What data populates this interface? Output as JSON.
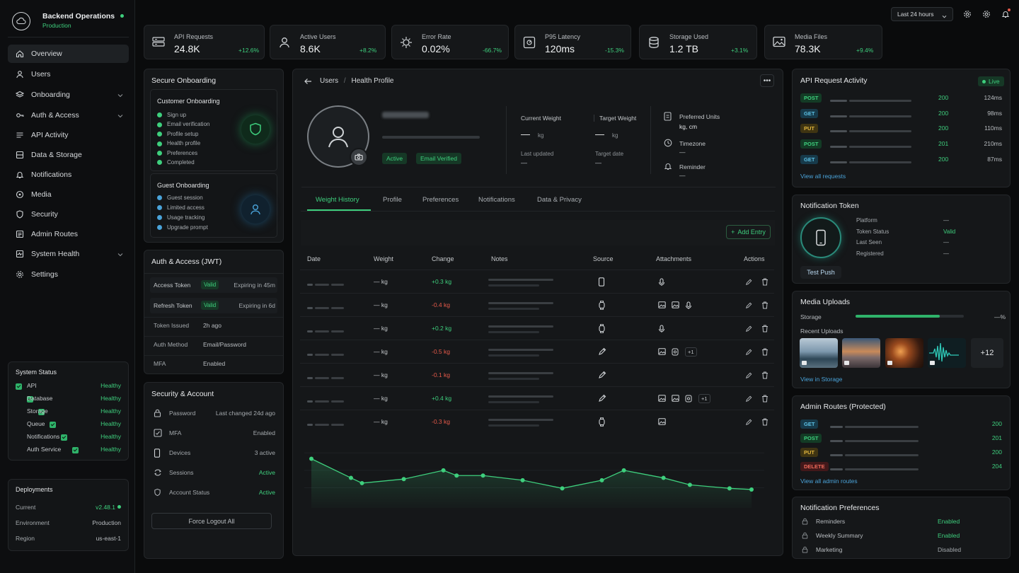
{
  "app": {
    "name": "Backend Operations",
    "env": "Production"
  },
  "header": {
    "range": "Last 24 hours"
  },
  "sidebar": {
    "items": [
      {
        "label": "Overview",
        "icon": "home-icon"
      },
      {
        "label": "Users",
        "icon": "user-icon"
      },
      {
        "label": "Onboarding",
        "icon": "layers-icon"
      },
      {
        "label": "Auth & Access",
        "icon": "key-icon"
      },
      {
        "label": "API Activity",
        "icon": "api-icon"
      },
      {
        "label": "Data & Storage",
        "icon": "database-icon"
      },
      {
        "label": "Notifications",
        "icon": "bell-icon"
      },
      {
        "label": "Media",
        "icon": "media-icon"
      },
      {
        "label": "Security",
        "icon": "shield-icon"
      },
      {
        "label": "Admin Routes",
        "icon": "list-icon"
      },
      {
        "label": "System Health",
        "icon": "health-icon"
      },
      {
        "label": "Settings",
        "icon": "gear-icon"
      }
    ],
    "system_status": {
      "title": "System Status",
      "items": [
        {
          "name": "API",
          "status": "Healthy"
        },
        {
          "name": "Database",
          "status": "Healthy"
        },
        {
          "name": "Storage",
          "status": "Healthy"
        },
        {
          "name": "Queue",
          "status": "Healthy"
        },
        {
          "name": "Notifications",
          "status": "Healthy"
        },
        {
          "name": "Auth Service",
          "status": "Healthy"
        }
      ]
    },
    "deployments": {
      "title": "Deployments",
      "rows": [
        {
          "label": "Current",
          "value": "v2.48.1"
        },
        {
          "label": "Environment",
          "value": "Production"
        },
        {
          "label": "Region",
          "value": "us-east-1"
        }
      ]
    }
  },
  "stats": [
    {
      "label": "API Requests",
      "value": "24.8K",
      "change": "+12.6%",
      "icon": "server-icon"
    },
    {
      "label": "Active Users",
      "value": "8.6K",
      "change": "+8.2%",
      "icon": "user-icon"
    },
    {
      "label": "Error Rate",
      "value": "0.02%",
      "change": "-66.7%",
      "icon": "bug-icon"
    },
    {
      "label": "P95 Latency",
      "value": "120ms",
      "change": "-15.3%",
      "icon": "gauge-icon"
    },
    {
      "label": "Storage Used",
      "value": "1.2 TB",
      "change": "+3.1%",
      "icon": "database-icon"
    },
    {
      "label": "Media Files",
      "value": "78.3K",
      "change": "+9.4%",
      "icon": "image-icon"
    }
  ],
  "onboarding": {
    "title": "Secure Onboarding",
    "customer": {
      "title": "Customer Onboarding",
      "steps": [
        "Sign up",
        "Email verification",
        "Profile setup",
        "Health profile",
        "Preferences",
        "Completed"
      ]
    },
    "guest": {
      "title": "Guest Onboarding",
      "steps": [
        "Guest session",
        "Limited access",
        "Usage tracking",
        "Upgrade prompt"
      ]
    }
  },
  "auth": {
    "title": "Auth & Access (JWT)",
    "tokens": [
      {
        "name": "Access Token",
        "status": "Valid",
        "expiry": "Expiring in 45m"
      },
      {
        "name": "Refresh Token",
        "status": "Valid",
        "expiry": "Expiring in 6d"
      }
    ],
    "rows": [
      {
        "label": "Token Issued",
        "value": "2h ago"
      },
      {
        "label": "Auth Method",
        "value": "Email/Password"
      },
      {
        "label": "MFA",
        "value": "Enabled"
      }
    ]
  },
  "security": {
    "title": "Security & Account",
    "rows": [
      {
        "label": "Password",
        "value": "Last changed 24d ago",
        "icon": "lock-icon"
      },
      {
        "label": "MFA",
        "value": "Enabled",
        "icon": "mfa-icon"
      },
      {
        "label": "Devices",
        "value": "3 active",
        "icon": "phone-icon"
      },
      {
        "label": "Sessions",
        "value": "Active",
        "icon": "sessions-icon"
      },
      {
        "label": "Account Status",
        "value": "Active",
        "icon": "shield-icon"
      }
    ],
    "button": "Force Logout All"
  },
  "profile": {
    "breadcrumb": [
      "Users",
      "Health Profile"
    ],
    "badges": [
      "Active",
      "Email Verified"
    ],
    "current_weight": {
      "label": "Current Weight",
      "value": "—",
      "unit": "kg",
      "sub": "Last updated",
      "sub_value": "—"
    },
    "target_weight": {
      "label": "Target Weight",
      "value": "—",
      "unit": "kg",
      "sub": "Target date",
      "sub_value": "—"
    },
    "preferred_units": {
      "label": "Preferred Units",
      "value": "kg, cm"
    },
    "timezone": {
      "label": "Timezone",
      "value": "—"
    },
    "reminder": {
      "label": "Reminder",
      "value": "—"
    },
    "tabs": [
      "Weight History",
      "Profile",
      "Preferences",
      "Notifications",
      "Data & Privacy"
    ],
    "add_entry": "Add Entry",
    "columns": [
      "Date",
      "Weight",
      "Change",
      "Notes",
      "Source",
      "Attachments",
      "Actions"
    ],
    "rows": [
      {
        "weight": "— kg",
        "change": "+0.3 kg",
        "dir": "up",
        "source": "phone-icon",
        "attach": [
          "mic-icon"
        ],
        "more": ""
      },
      {
        "weight": "— kg",
        "change": "-0.4 kg",
        "dir": "down",
        "source": "watch-icon",
        "attach": [
          "image-icon",
          "image-icon",
          "mic-icon"
        ],
        "more": ""
      },
      {
        "weight": "— kg",
        "change": "+0.2 kg",
        "dir": "up",
        "source": "watch-icon",
        "attach": [
          "mic-icon"
        ],
        "more": ""
      },
      {
        "weight": "— kg",
        "change": "-0.5 kg",
        "dir": "down",
        "source": "pen-icon",
        "attach": [
          "image-icon",
          "doc-icon"
        ],
        "more": "+1"
      },
      {
        "weight": "— kg",
        "change": "-0.1 kg",
        "dir": "down",
        "source": "pen-icon",
        "attach": [],
        "more": ""
      },
      {
        "weight": "— kg",
        "change": "+0.4 kg",
        "dir": "up",
        "source": "pen-icon",
        "attach": [
          "image-icon",
          "image-icon",
          "doc-icon"
        ],
        "more": "+1"
      },
      {
        "weight": "— kg",
        "change": "-0.3 kg",
        "dir": "down",
        "source": "watch-icon",
        "attach": [
          "image-icon"
        ],
        "more": ""
      }
    ]
  },
  "chart_data": {
    "type": "area",
    "x": [
      1,
      2,
      3,
      4,
      5,
      6,
      7,
      8,
      9,
      10,
      11,
      12,
      13,
      14,
      15
    ],
    "values": [
      0.75,
      0.42,
      0.33,
      0.4,
      0.55,
      0.46,
      0.46,
      0.38,
      0.24,
      0.38,
      0.55,
      0.42,
      0.3,
      0.24,
      0.22
    ],
    "title": "",
    "xlabel": "",
    "ylabel": "",
    "grid": true,
    "color": "#3ecf7d"
  },
  "api_activity": {
    "title": "API Request Activity",
    "live": "Live",
    "rows": [
      {
        "method": "POST",
        "code": "200",
        "time": "124ms"
      },
      {
        "method": "GET",
        "code": "200",
        "time": "98ms"
      },
      {
        "method": "PUT",
        "code": "200",
        "time": "110ms"
      },
      {
        "method": "POST",
        "code": "201",
        "time": "210ms"
      },
      {
        "method": "GET",
        "code": "200",
        "time": "87ms"
      }
    ],
    "link": "View all requests"
  },
  "notif_token": {
    "title": "Notification Token",
    "rows": [
      {
        "label": "Platform",
        "value": "—"
      },
      {
        "label": "Token Status",
        "value": "Valid"
      },
      {
        "label": "Last Seen",
        "value": "—"
      },
      {
        "label": "Registered",
        "value": "—"
      }
    ],
    "button": "Test Push"
  },
  "media": {
    "title": "Media Uploads",
    "storage_label": "Storage",
    "storage_pct": "—%",
    "storage_fill": 0.78,
    "recent": "Recent Uploads",
    "more": "+12",
    "link": "View in Storage"
  },
  "admin_routes": {
    "title": "Admin Routes (Protected)",
    "rows": [
      {
        "method": "GET",
        "code": "200"
      },
      {
        "method": "POST",
        "code": "201"
      },
      {
        "method": "PUT",
        "code": "200"
      },
      {
        "method": "DELETE",
        "code": "204"
      }
    ],
    "link": "View all admin routes"
  },
  "notif_prefs": {
    "title": "Notification Preferences",
    "rows": [
      {
        "label": "Reminders",
        "value": "Enabled"
      },
      {
        "label": "Weekly Summary",
        "value": "Enabled"
      },
      {
        "label": "Marketing",
        "value": "Disabled"
      }
    ]
  }
}
